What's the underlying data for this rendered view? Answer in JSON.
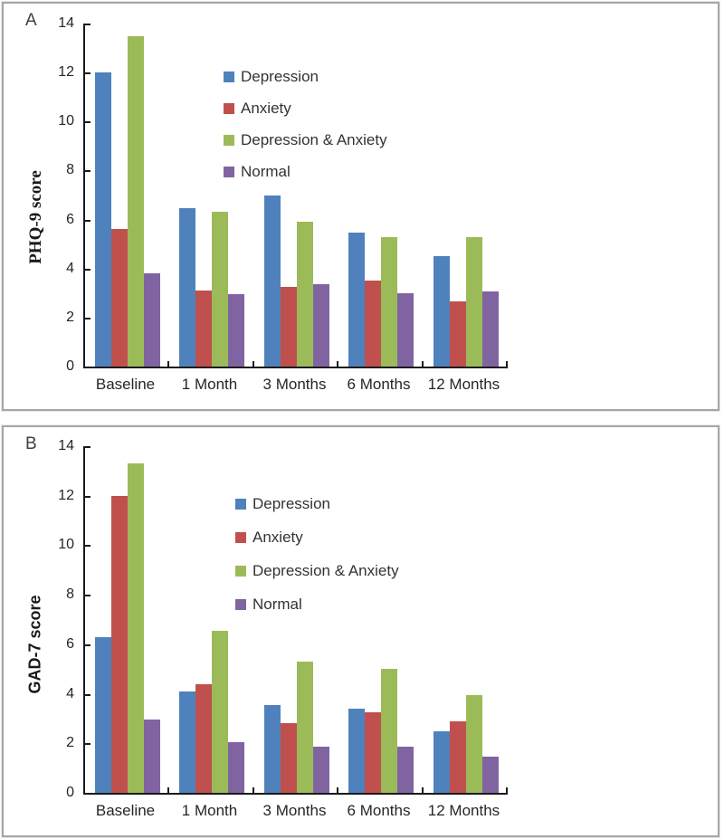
{
  "figure": {
    "panel_a_label": "A",
    "panel_b_label": "B"
  },
  "chart_data": [
    {
      "type": "bar",
      "panel_label": "A",
      "title": "",
      "xlabel": "",
      "ylabel": "PHQ-9 score",
      "ylim": [
        0,
        14
      ],
      "yticks": [
        0,
        2,
        4,
        6,
        8,
        10,
        12,
        14
      ],
      "grid": false,
      "legend_position": "upper-right-inside",
      "categories": [
        "Baseline",
        "1 Month",
        "3 Months",
        "6 Months",
        "12 Months"
      ],
      "series": [
        {
          "name": "Depression",
          "color": "#4F81BD",
          "values": [
            12.0,
            6.45,
            7.0,
            5.45,
            4.5
          ]
        },
        {
          "name": "Anxiety",
          "color": "#C0504D",
          "values": [
            5.6,
            3.1,
            3.25,
            3.5,
            2.65
          ]
        },
        {
          "name": "Depression & Anxiety",
          "color": "#9BBB59",
          "values": [
            13.5,
            6.3,
            5.9,
            5.3,
            5.3
          ]
        },
        {
          "name": "Normal",
          "color": "#8064A2",
          "values": [
            3.8,
            2.95,
            3.35,
            3.0,
            3.05
          ]
        }
      ]
    },
    {
      "type": "bar",
      "panel_label": "B",
      "title": "",
      "xlabel": "",
      "ylabel": "GAD-7 score",
      "ylim": [
        0,
        14
      ],
      "yticks": [
        0,
        2,
        4,
        6,
        8,
        10,
        12,
        14
      ],
      "grid": false,
      "legend_position": "upper-right-inside",
      "categories": [
        "Baseline",
        "1 Month",
        "3 Months",
        "6 Months",
        "12 Months"
      ],
      "series": [
        {
          "name": "Depression",
          "color": "#4F81BD",
          "values": [
            6.3,
            4.1,
            3.55,
            3.4,
            2.5
          ]
        },
        {
          "name": "Anxiety",
          "color": "#C0504D",
          "values": [
            12.0,
            4.4,
            2.8,
            3.25,
            2.9
          ]
        },
        {
          "name": "Depression & Anxiety",
          "color": "#9BBB59",
          "values": [
            13.3,
            6.55,
            5.3,
            5.0,
            3.95
          ]
        },
        {
          "name": "Normal",
          "color": "#8064A2",
          "values": [
            2.95,
            2.05,
            1.85,
            1.85,
            1.45
          ]
        }
      ]
    }
  ]
}
